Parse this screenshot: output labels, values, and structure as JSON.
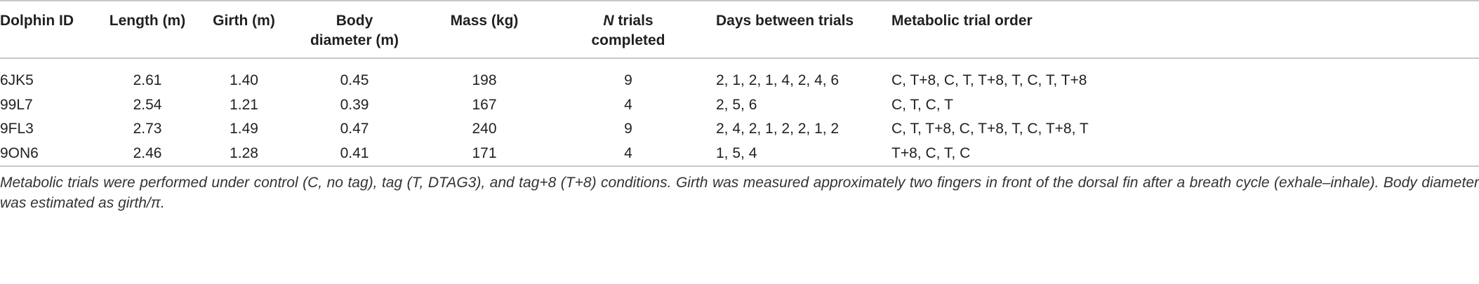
{
  "table": {
    "header": [
      "Dolphin ID",
      "Length (m)",
      "Girth (m)",
      "Body diameter (m)",
      "Mass (kg)",
      "N trials completed",
      "Days between trials",
      "Metabolic trial order"
    ],
    "rows": [
      [
        "6JK5",
        "2.61",
        "1.40",
        "0.45",
        "198",
        "9",
        "2, 1, 2, 1, 4, 2, 4, 6",
        "C, T+8, C, T, T+8, T, C, T, T+8"
      ],
      [
        "99L7",
        "2.54",
        "1.21",
        "0.39",
        "167",
        "4",
        "2, 5, 6",
        "C, T, C, T"
      ],
      [
        "9FL3",
        "2.73",
        "1.49",
        "0.47",
        "240",
        "9",
        "2, 4, 2, 1, 2, 2, 1, 2",
        "C, T, T+8, C, T+8, T, C, T+8, T"
      ],
      [
        "9ON6",
        "2.46",
        "1.28",
        "0.41",
        "171",
        "4",
        "1, 5, 4",
        "T+8, C, T, C"
      ]
    ],
    "footnote": "Metabolic trials were performed under control (C, no tag), tag (T, DTAG3), and tag+8 (T+8) conditions. Girth was measured approximately two fingers in front of the dorsal fin after a breath cycle (exhale–inhale). Body diameter was estimated as girth/π."
  }
}
